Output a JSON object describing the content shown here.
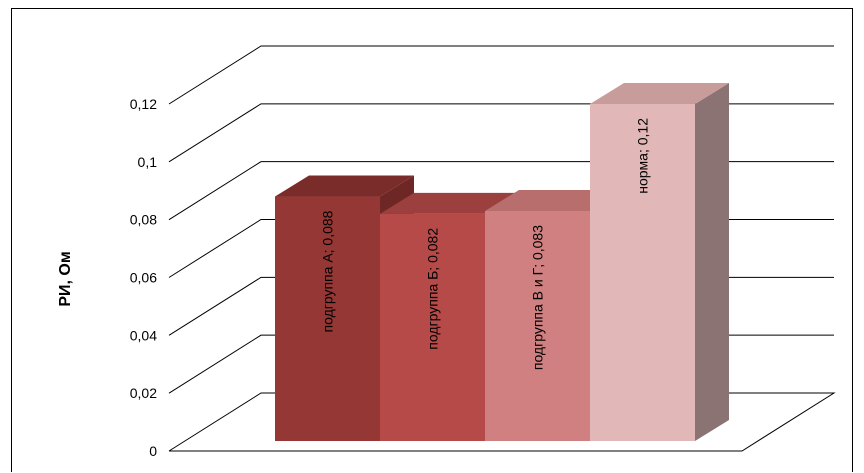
{
  "chart_data": {
    "type": "bar",
    "style": "3d-column",
    "categories": [
      "подгруппа А",
      "подгруппа Б",
      "подгруппа В и Г",
      "норма"
    ],
    "values": [
      0.088,
      0.082,
      0.083,
      0.12
    ],
    "data_labels": [
      "подгруппа А; 0,088",
      "подгруппа Б; 0,082",
      "подгруппа В и Г; 0,083",
      "норма; 0,12"
    ],
    "ylabel": "РИ, Ом",
    "xlabel": "",
    "title": "",
    "ylim": [
      0,
      0.12
    ],
    "yticks": [
      0,
      0.02,
      0.04,
      0.06,
      0.08,
      0.1,
      0.12
    ],
    "ytick_labels": [
      "0",
      "0,02",
      "0,04",
      "0,06",
      "0,08",
      "0,1",
      "0,12"
    ],
    "grid": true,
    "legend": "none",
    "colors": {
      "front": [
        "#953735",
        "#b54a48",
        "#d08080",
        "#e2b7b7"
      ],
      "top": [
        "#7a2c2b",
        "#9b403f",
        "#b96e6e",
        "#c99c9c"
      ],
      "side": [
        "#6e2725",
        "#913936",
        "#a85f5f",
        "#8c7373"
      ]
    }
  }
}
